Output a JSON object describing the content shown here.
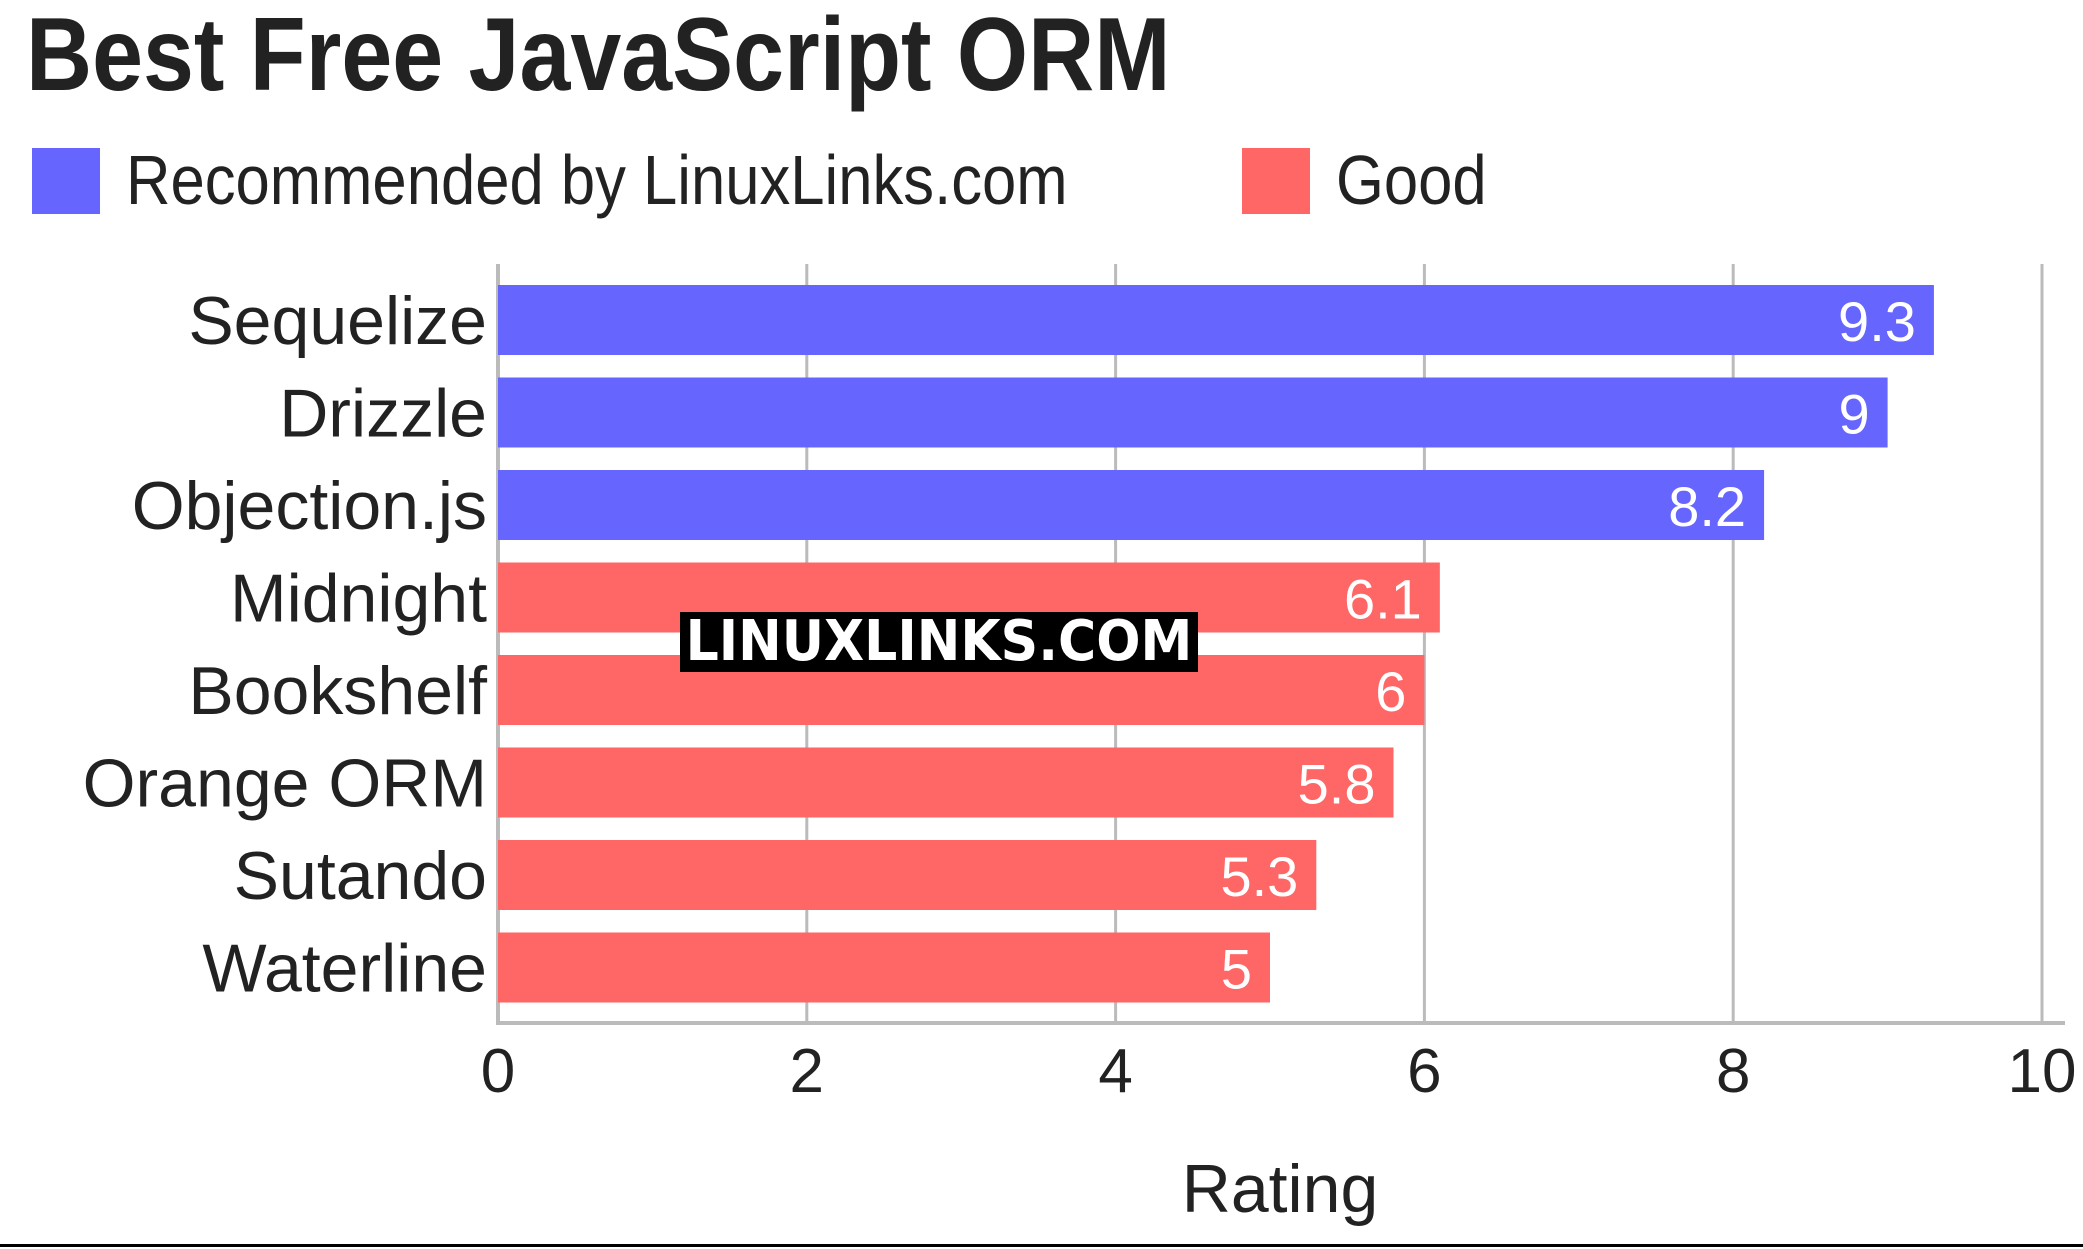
{
  "colors": {
    "recommended": "#6666ff",
    "good": "#ff6666",
    "grid": "#bbbbbb",
    "text": "#222222"
  },
  "watermark": "LINUXLINKS.COM",
  "chart_data": {
    "type": "bar",
    "orientation": "horizontal",
    "title": "Best Free JavaScript ORM",
    "xlabel": "Rating",
    "ylabel": "",
    "xlim": [
      0,
      10
    ],
    "xticks": [
      0,
      2,
      4,
      6,
      8,
      10
    ],
    "grid": true,
    "legend_position": "top-left",
    "legend": [
      {
        "label": "Recommended by LinuxLinks.com",
        "color": "#6666ff"
      },
      {
        "label": "Good",
        "color": "#ff6666"
      }
    ],
    "categories": [
      "Sequelize",
      "Drizzle",
      "Objection.js",
      "Midnight",
      "Bookshelf",
      "Orange ORM",
      "Sutando",
      "Waterline"
    ],
    "values": [
      9.3,
      9,
      8.2,
      6.1,
      6,
      5.8,
      5.3,
      5
    ],
    "data_labels": [
      "9.3",
      "9",
      "8.2",
      "6.1",
      "6",
      "5.8",
      "5.3",
      "5"
    ],
    "groups": [
      "Recommended by LinuxLinks.com",
      "Recommended by LinuxLinks.com",
      "Recommended by LinuxLinks.com",
      "Good",
      "Good",
      "Good",
      "Good",
      "Good"
    ]
  }
}
